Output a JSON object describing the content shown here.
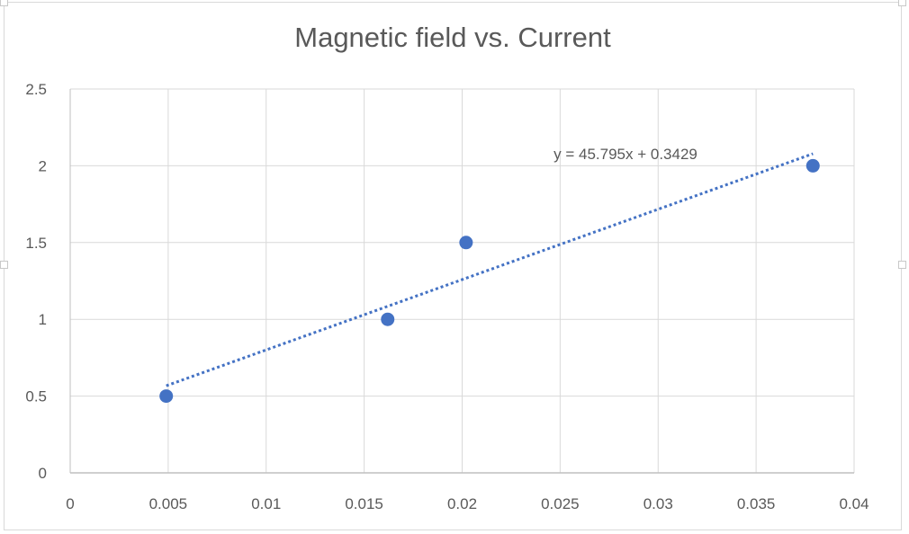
{
  "chart_data": {
    "type": "scatter",
    "title": "Magnetic field vs. Current",
    "xlabel": "",
    "ylabel": "",
    "xlim": [
      0,
      0.04
    ],
    "ylim": [
      0,
      2.5
    ],
    "x_ticks": [
      "0",
      "0.005",
      "0.01",
      "0.015",
      "0.02",
      "0.025",
      "0.03",
      "0.035",
      "0.04"
    ],
    "y_ticks": [
      "0",
      "0.5",
      "1",
      "1.5",
      "2",
      "2.5"
    ],
    "grid": true,
    "legend": "none",
    "series": [
      {
        "color": "#4472c4",
        "points": [
          {
            "x": 0.0049,
            "y": 0.5
          },
          {
            "x": 0.0162,
            "y": 1.0
          },
          {
            "x": 0.0202,
            "y": 1.5
          },
          {
            "x": 0.0379,
            "y": 2.0
          }
        ]
      }
    ],
    "trendline": {
      "style": "dotted",
      "color": "#4472c4",
      "slope": 45.795,
      "intercept": 0.3429,
      "x_range": [
        0.0049,
        0.0379
      ],
      "equation": "y = 45.795x + 0.3429"
    },
    "colors": {
      "grid": "#d9d9d9",
      "text": "#595959",
      "axis": "#bfbfbf"
    }
  }
}
